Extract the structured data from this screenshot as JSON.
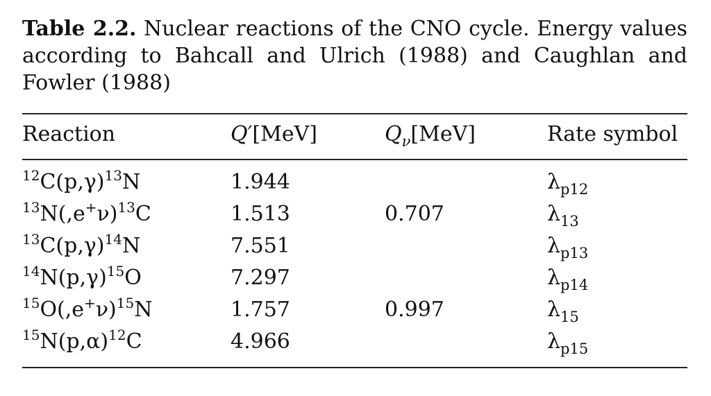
{
  "caption": {
    "label": "Table 2.2.",
    "text": "Nuclear reactions of the CNO cycle. Energy values according to Bahcall and Ulrich (1988) and Caughlan and Fowler (1988)"
  },
  "table": {
    "headers": {
      "reaction": "Reaction",
      "q_prime_symbol": "Q′",
      "q_prime_unit": "[MeV]",
      "q_nu_symbol": "Q",
      "q_nu_sub": "ν",
      "q_nu_unit": "[MeV]",
      "rate_symbol": "Rate symbol"
    },
    "rows": [
      {
        "pre": "12",
        "mid": "C(p,γ)",
        "post": "13",
        "end": "N",
        "q": "1.944",
        "qnu": "",
        "lambda": "λ",
        "lsub": "p12"
      },
      {
        "pre": "13",
        "mid": "N(,e",
        "sup2": "+",
        "mid2": "ν)",
        "post": "13",
        "end": "C",
        "q": "1.513",
        "qnu": "0.707",
        "lambda": "λ",
        "lsub": "13"
      },
      {
        "pre": "13",
        "mid": "C(p,γ)",
        "post": "14",
        "end": "N",
        "q": "7.551",
        "qnu": "",
        "lambda": "λ",
        "lsub": "p13"
      },
      {
        "pre": "14",
        "mid": "N(p,γ)",
        "post": "15",
        "end": "O",
        "q": "7.297",
        "qnu": "",
        "lambda": "λ",
        "lsub": "p14"
      },
      {
        "pre": "15",
        "mid": "O(,e",
        "sup2": "+",
        "mid2": "ν)",
        "post": "15",
        "end": "N",
        "q": "1.757",
        "qnu": "0.997",
        "lambda": "λ",
        "lsub": "15"
      },
      {
        "pre": "15",
        "mid": "N(p,α)",
        "post": "12",
        "end": "C",
        "q": "4.966",
        "qnu": "",
        "lambda": "λ",
        "lsub": "p15"
      }
    ]
  }
}
